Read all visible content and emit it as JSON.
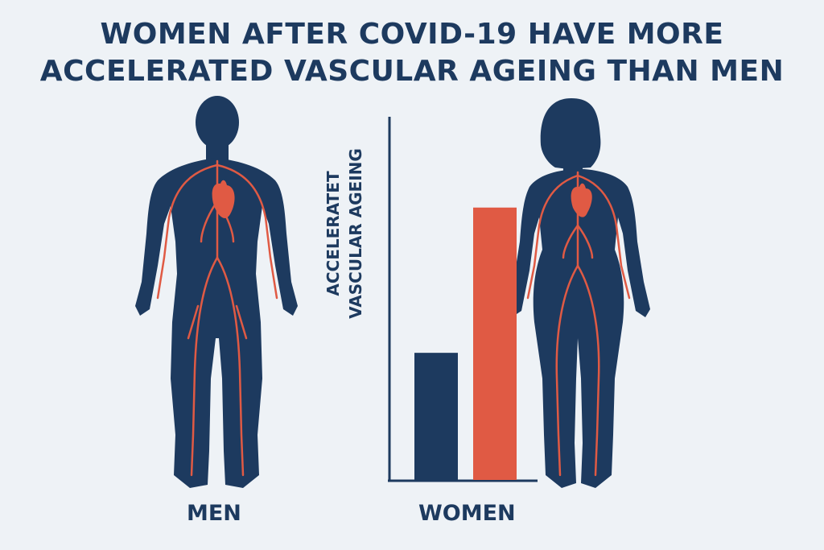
{
  "title_lines": [
    "WOMEN AFTER COVID-19 HAVE MORE",
    "ACCELERATED VASCULAR AGEING THAN MEN"
  ],
  "labels": {
    "men": "MEN",
    "women": "WOMEN"
  },
  "ylabel_lines": [
    "ACCELERATET",
    "VASCULAR AGEING"
  ],
  "colors": {
    "body": "#1d3a5f",
    "vessel": "#e05a44",
    "background": "#eef2f6"
  },
  "chart_data": {
    "type": "bar",
    "categories": [
      "",
      ""
    ],
    "values": [
      35,
      75
    ],
    "colors": [
      "#1d3a5f",
      "#e05a44"
    ],
    "ylabel": "ACCELERATET VASCULAR AGEING",
    "ylim": [
      0,
      100
    ]
  }
}
